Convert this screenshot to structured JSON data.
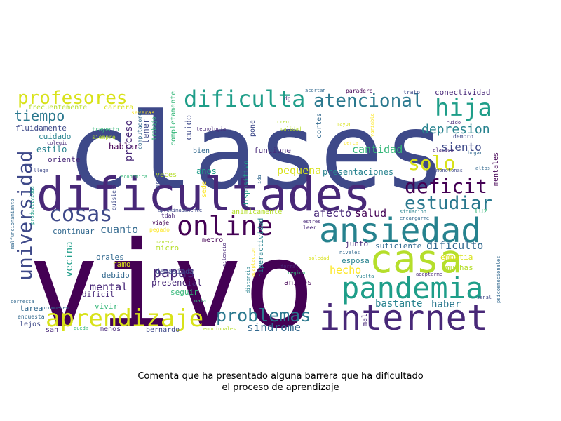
{
  "caption": {
    "line1": "Comenta que ha presentado alguna barrera que ha dificultado",
    "line2": "el proceso de aprendizaje"
  },
  "colors": {
    "purple": "#440154",
    "darkpurple": "#482878",
    "indigo": "#3e4989",
    "blue": "#31688e",
    "teal": "#26828e",
    "green": "#1f9e89",
    "lightgreen": "#35b779",
    "lime": "#6ece58",
    "yellowgreen": "#b5de2b",
    "yellow": "#fde725"
  },
  "words": [
    {
      "id": "clases",
      "text": "clases",
      "color": "#3e4989"
    },
    {
      "id": "vivo",
      "text": "vivo",
      "color": "#440154"
    },
    {
      "id": "dificultades",
      "text": "dificultades",
      "color": "#482878"
    },
    {
      "id": "ansiedad",
      "text": "ansiedad",
      "color": "#26828e"
    },
    {
      "id": "casa",
      "text": "casa",
      "color": "#b5de2b"
    },
    {
      "id": "internet",
      "text": "internet",
      "color": "#482878"
    },
    {
      "id": "pandemia",
      "text": "pandemia",
      "color": "#1f9e89"
    },
    {
      "id": "aprendizaje",
      "text": "aprendizaje",
      "color": "#d8e219"
    },
    {
      "id": "online",
      "text": "online",
      "color": "#440154"
    },
    {
      "id": "cosas",
      "text": "cosas",
      "color": "#3e4989"
    },
    {
      "id": "profesores",
      "text": "profesores",
      "color": "#d8e219"
    },
    {
      "id": "dificulta",
      "text": "dificulta",
      "color": "#1f9e89"
    },
    {
      "id": "atencional",
      "text": "atencional",
      "color": "#2a788e"
    },
    {
      "id": "hija",
      "text": "hija",
      "color": "#1f9e89"
    },
    {
      "id": "universidad",
      "text": "universidad",
      "color": "#3e4989"
    },
    {
      "id": "deficit",
      "text": "deficit",
      "color": "#440154"
    },
    {
      "id": "estudiar",
      "text": "estudiar",
      "color": "#2a788e"
    },
    {
      "id": "problemas",
      "text": "problemas",
      "color": "#2a788e"
    },
    {
      "id": "solo",
      "text": "solo",
      "color": "#d8e219"
    },
    {
      "id": "depresion",
      "text": "depresion",
      "color": "#26828e"
    },
    {
      "id": "tiempo",
      "text": "tiempo",
      "color": "#2a788e"
    },
    {
      "id": "papas",
      "text": "papas",
      "color": "#482878"
    },
    {
      "id": "sindrome",
      "text": "sindrome",
      "color": "#31688e"
    },
    {
      "id": "cantidad",
      "text": "cantidad",
      "color": "#35b779"
    },
    {
      "id": "siento",
      "text": "siento",
      "color": "#3e4989"
    },
    {
      "id": "pequena",
      "text": "pequena",
      "color": "#d8e219"
    },
    {
      "id": "cuanto",
      "text": "cuanto",
      "color": "#31688e"
    },
    {
      "id": "salud",
      "text": "salud",
      "color": "#440154"
    },
    {
      "id": "afecto",
      "text": "afecto",
      "color": "#482878"
    },
    {
      "id": "dificulto",
      "text": "dificulto",
      "color": "#31688e"
    },
    {
      "id": "mental",
      "text": "mental",
      "color": "#482878"
    },
    {
      "id": "bastante",
      "text": "bastante",
      "color": "#26828e"
    },
    {
      "id": "haber",
      "text": "haber",
      "color": "#2a788e"
    },
    {
      "id": "hecho",
      "text": "hecho",
      "color": "#fde725"
    },
    {
      "id": "vecina",
      "text": "vecina",
      "color": "#1f9e89"
    },
    {
      "id": "proceso",
      "text": "proceso",
      "color": "#482878"
    },
    {
      "id": "presentaciones",
      "text": "presentaciones",
      "color": "#26828e"
    },
    {
      "id": "anos",
      "text": "anos",
      "color": "#1f9e89"
    },
    {
      "id": "conectividad",
      "text": "conectividad",
      "color": "#482878"
    },
    {
      "id": "cuido",
      "text": "cuido",
      "color": "#3e4989"
    },
    {
      "id": "hablar",
      "text": "hablar",
      "color": "#440154"
    },
    {
      "id": "tener",
      "text": "tener",
      "color": "#3e4989"
    },
    {
      "id": "funcione",
      "text": "funcione",
      "color": "#482878"
    },
    {
      "id": "fluidamente",
      "text": "fluidamente",
      "color": "#3e4989"
    },
    {
      "id": "cuidado",
      "text": "cuidado",
      "color": "#26828e"
    },
    {
      "id": "estilo",
      "text": "estilo",
      "color": "#26828e"
    },
    {
      "id": "oriente",
      "text": "oriente",
      "color": "#482878"
    },
    {
      "id": "continuar",
      "text": "continuar",
      "color": "#31688e"
    },
    {
      "id": "vivir",
      "text": "vivir",
      "color": "#35b779"
    },
    {
      "id": "ramo",
      "text": "ramo",
      "color": "#d8e219"
    },
    {
      "id": "debido",
      "text": "debido",
      "color": "#31688e"
    },
    {
      "id": "dificil",
      "text": "dificil",
      "color": "#482878"
    },
    {
      "id": "presencial",
      "text": "presencial",
      "color": "#482878"
    },
    {
      "id": "demasiada",
      "text": "demasiada",
      "color": "#3e4989"
    },
    {
      "id": "micro",
      "text": "micro",
      "color": "#b5de2b"
    },
    {
      "id": "orales",
      "text": "orales",
      "color": "#31688e"
    },
    {
      "id": "seguir",
      "text": "seguir",
      "color": "#35b779"
    },
    {
      "id": "menos",
      "text": "menos",
      "color": "#482878"
    },
    {
      "id": "animos",
      "text": "animos",
      "color": "#440154"
    },
    {
      "id": "junto",
      "text": "junto",
      "color": "#482878"
    },
    {
      "id": "esposa",
      "text": "esposa",
      "color": "#26828e"
    },
    {
      "id": "suficiente",
      "text": "suficiente",
      "color": "#31688e"
    },
    {
      "id": "empatia",
      "text": "empatia",
      "color": "#d8e219"
    },
    {
      "id": "muchas",
      "text": "muchas",
      "color": "#b5de2b"
    },
    {
      "id": "luz",
      "text": "luz",
      "color": "#35b779"
    },
    {
      "id": "mentales",
      "text": "mentales",
      "color": "#440154"
    },
    {
      "id": "tarea",
      "text": "tarea",
      "color": "#31688e"
    },
    {
      "id": "lejos",
      "text": "lejos",
      "color": "#3e4989"
    },
    {
      "id": "san",
      "text": "san",
      "color": "#482878"
    },
    {
      "id": "bernardo",
      "text": "bernardo",
      "color": "#3e4989"
    },
    {
      "id": "metro",
      "text": "metro",
      "color": "#440154"
    },
    {
      "id": "veces",
      "text": "veces",
      "color": "#b5de2b"
    },
    {
      "id": "sede",
      "text": "sede",
      "color": "#fde725"
    },
    {
      "id": "pone",
      "text": "pone",
      "color": "#3e4989"
    },
    {
      "id": "dispositivo",
      "text": "dispositivo",
      "color": "#1f9e89"
    },
    {
      "id": "animicamente",
      "text": "animicamente",
      "color": "#b5de2b"
    },
    {
      "id": "hiperactividad",
      "text": "hiperactividad",
      "color": "#26828e"
    },
    {
      "id": "mal",
      "text": "mal",
      "color": "#482878"
    },
    {
      "id": "bien",
      "text": "bien",
      "color": "#31688e"
    },
    {
      "id": "cortes",
      "text": "cortes",
      "color": "#31688e"
    },
    {
      "id": "completamente",
      "text": "completamente",
      "color": "#35b779"
    },
    {
      "id": "frecuentemente",
      "text": "frecuentemente",
      "color": "#b5de2b"
    },
    {
      "id": "carrera",
      "text": "carrera",
      "color": "#d8e219"
    },
    {
      "id": "trayecto",
      "text": "trayecto",
      "color": "#35b779"
    },
    {
      "id": "siempre",
      "text": "siempre",
      "color": "#b5de2b"
    },
    {
      "id": "severas",
      "text": "severas",
      "color": "#fde725"
    },
    {
      "id": "trabajo",
      "text": "trabajo",
      "color": "#35b779"
    },
    {
      "id": "computadores",
      "text": "computadores",
      "color": "#31688e"
    },
    {
      "id": "quisiera",
      "text": "quisiera",
      "color": "#3e4989"
    },
    {
      "id": "economica",
      "text": "economica",
      "color": "#35b779"
    },
    {
      "id": "cuente",
      "text": "cuente",
      "color": "#3e4989"
    },
    {
      "id": "tdah",
      "text": "tdah",
      "color": "#482878"
    },
    {
      "id": "viaje",
      "text": "viaje",
      "color": "#440154"
    },
    {
      "id": "aproximadamente",
      "text": "aproximadamente",
      "color": "#3e4989"
    },
    {
      "id": "pegado",
      "text": "pegado",
      "color": "#fde725"
    },
    {
      "id": "manera",
      "text": "manera",
      "color": "#b5de2b"
    },
    {
      "id": "mala",
      "text": "mala",
      "color": "#35b779"
    },
    {
      "id": "emocionales",
      "text": "emocionales",
      "color": "#b5de2b"
    },
    {
      "id": "queda",
      "text": "queda",
      "color": "#35b779"
    },
    {
      "id": "promueven",
      "text": "promueven",
      "color": "#31688e"
    },
    {
      "id": "correcta",
      "text": "correcta",
      "color": "#31688e"
    },
    {
      "id": "encuesta",
      "text": "encuesta",
      "color": "#31688e"
    },
    {
      "id": "malfuncionamiento",
      "text": "malfuncionamiento",
      "color": "#31688e"
    },
    {
      "id": "productividad",
      "text": "productividad",
      "color": "#1f9e89"
    },
    {
      "id": "llega",
      "text": "llega",
      "color": "#3e4989"
    },
    {
      "id": "colegio",
      "text": "colegio",
      "color": "#482878"
    },
    {
      "id": "tecnologia",
      "text": "tecnologia",
      "color": "#482878"
    },
    {
      "id": "ida",
      "text": "ida",
      "color": "#31688e"
    },
    {
      "id": "silencio",
      "text": "silencio",
      "color": "#482878"
    },
    {
      "id": "distancia",
      "text": "distancia",
      "color": "#26828e"
    },
    {
      "id": "adaptacion",
      "text": "adaptacion",
      "color": "#fde725"
    },
    {
      "id": "acortan",
      "text": "acortan",
      "color": "#31688e"
    },
    {
      "id": "paradero",
      "text": "paradero",
      "color": "#440154"
    },
    {
      "id": "trato",
      "text": "trato",
      "color": "#3e4989"
    },
    {
      "id": "dg",
      "text": "dg",
      "color": "#482878"
    },
    {
      "id": "creo",
      "text": "creo",
      "color": "#b5de2b"
    },
    {
      "id": "calidad",
      "text": "calidad",
      "color": "#b5de2b"
    },
    {
      "id": "mayor",
      "text": "mayor",
      "color": "#d8e219"
    },
    {
      "id": "variable",
      "text": "variable",
      "color": "#fde725"
    },
    {
      "id": "cerca",
      "text": "cerca",
      "color": "#fde725"
    },
    {
      "id": "ruido",
      "text": "ruido",
      "color": "#482878"
    },
    {
      "id": "demoro",
      "text": "demoro",
      "color": "#3e4989"
    },
    {
      "id": "relacion",
      "text": "relacion",
      "color": "#482878"
    },
    {
      "id": "hogar",
      "text": "hogar",
      "color": "#31688e"
    },
    {
      "id": "altos",
      "text": "altos",
      "color": "#31688e"
    },
    {
      "id": "monotonas",
      "text": "monotonas",
      "color": "#3e4989"
    },
    {
      "id": "estres",
      "text": "estres",
      "color": "#482878"
    },
    {
      "id": "leer",
      "text": "leer",
      "color": "#482878"
    },
    {
      "id": "situacion",
      "text": "situacion",
      "color": "#26828e"
    },
    {
      "id": "encargarme",
      "text": "encargarme",
      "color": "#31688e"
    },
    {
      "id": "niveles",
      "text": "niveles",
      "color": "#31688e"
    },
    {
      "id": "formal",
      "text": "formal",
      "color": "#482878"
    },
    {
      "id": "region",
      "text": "region",
      "color": "#35b779"
    },
    {
      "id": "soledad",
      "text": "soledad",
      "color": "#d8e219"
    },
    {
      "id": "vuelta",
      "text": "vuelta",
      "color": "#26828e"
    },
    {
      "id": "adaptarme",
      "text": "adaptarme",
      "color": "#482878"
    },
    {
      "id": "psicoemocionales",
      "text": "psicoemocionales",
      "color": "#31688e"
    },
    {
      "id": "senal",
      "text": "senal",
      "color": "#3e4989"
    }
  ]
}
